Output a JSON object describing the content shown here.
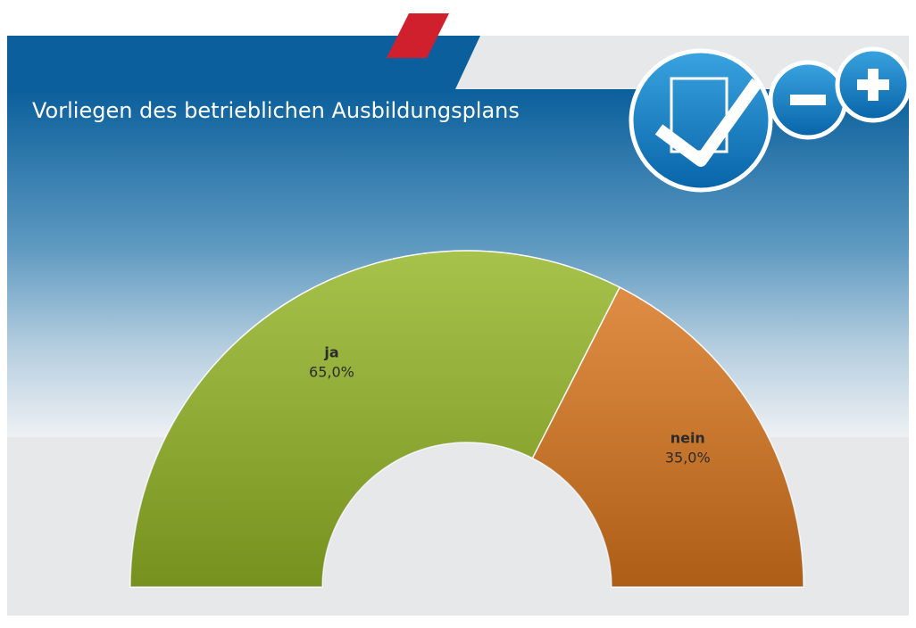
{
  "chart_data": {
    "type": "pie",
    "half": true,
    "title": "Vorliegen des betrieblichen Ausbildungsplans",
    "categories": [
      "ja",
      "nein"
    ],
    "values": [
      65,
      35
    ],
    "value_labels": [
      "65,0%",
      "35,0%"
    ],
    "colors": [
      "#93b524",
      "#d8741b"
    ]
  }
}
